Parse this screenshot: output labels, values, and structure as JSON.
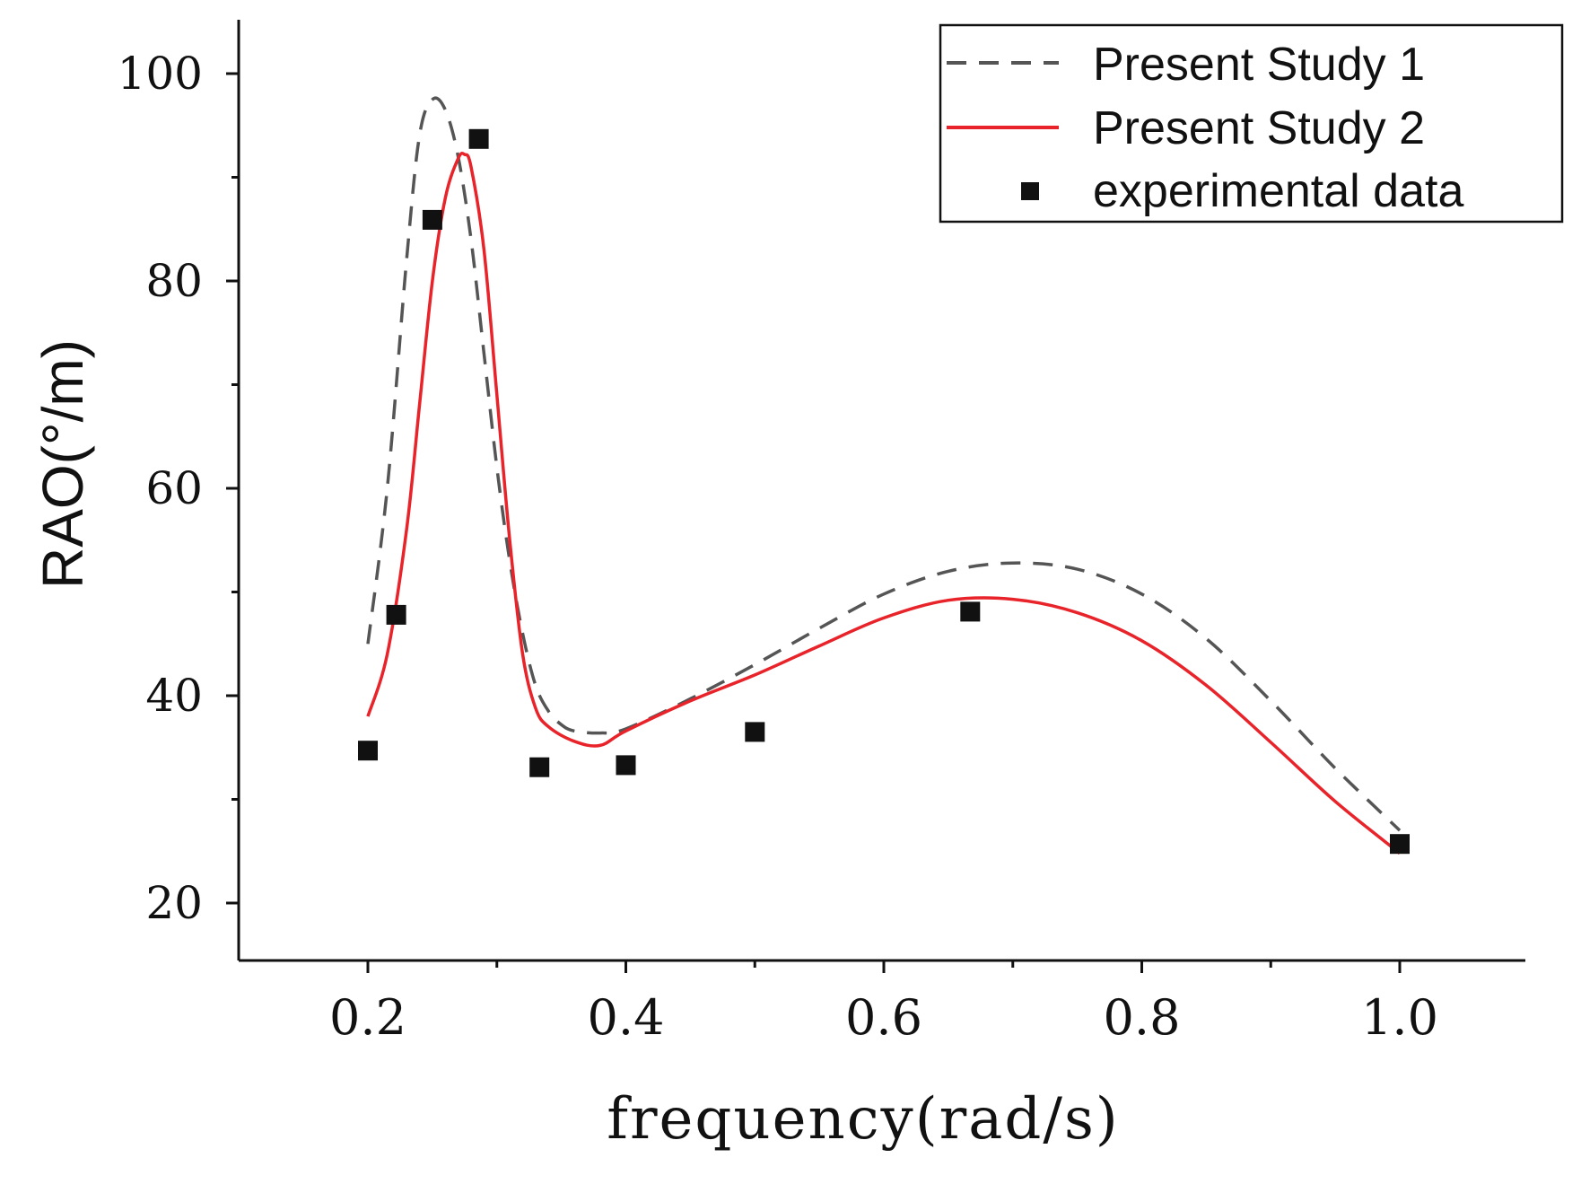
{
  "chart_data": {
    "type": "line",
    "title": "",
    "xlabel": "frequency(rad/s)",
    "ylabel": "RAO(°/m)",
    "xlim": [
      0.1,
      1.1
    ],
    "ylim": [
      15,
      105
    ],
    "xticks": [
      0.2,
      0.4,
      0.6,
      0.8,
      1.0
    ],
    "xtick_labels": [
      "0.2",
      "0.4",
      "0.6",
      "0.8",
      "1.0"
    ],
    "yticks": [
      20,
      40,
      60,
      80,
      100
    ],
    "ytick_labels": [
      "20",
      "40",
      "60",
      "80",
      "100"
    ],
    "y_minor_ticks": [
      30,
      50,
      70,
      90
    ],
    "x_minor_ticks": [
      0.3,
      0.5,
      0.7,
      0.9
    ],
    "grid": false,
    "legend_position": "top-right",
    "series": [
      {
        "name": "Present Study 1",
        "style": "dashed",
        "color": "#555555",
        "x": [
          0.2,
          0.215,
          0.23,
          0.24,
          0.25,
          0.26,
          0.27,
          0.28,
          0.29,
          0.3,
          0.31,
          0.32,
          0.33,
          0.34,
          0.35,
          0.36,
          0.38,
          0.4,
          0.45,
          0.5,
          0.55,
          0.6,
          0.65,
          0.7,
          0.75,
          0.8,
          0.85,
          0.9,
          0.95,
          1.0
        ],
        "y": [
          45,
          60,
          82,
          94,
          97.5,
          96.5,
          92,
          84,
          73,
          62,
          53,
          46,
          41,
          38.5,
          37.2,
          36.6,
          36.4,
          36.8,
          39.7,
          43,
          46.5,
          49.8,
          52,
          52.8,
          52.2,
          49.8,
          45.5,
          39.5,
          33,
          27
        ]
      },
      {
        "name": "Present Study 2",
        "style": "solid",
        "color": "#e8232a",
        "x": [
          0.2,
          0.215,
          0.23,
          0.24,
          0.25,
          0.26,
          0.27,
          0.275,
          0.28,
          0.29,
          0.3,
          0.31,
          0.32,
          0.33,
          0.34,
          0.36,
          0.38,
          0.4,
          0.45,
          0.5,
          0.55,
          0.6,
          0.65,
          0.7,
          0.75,
          0.8,
          0.85,
          0.9,
          0.95,
          1.0
        ],
        "y": [
          38,
          44,
          56,
          68,
          80,
          88,
          91.8,
          92.2,
          91,
          83,
          69,
          55,
          44,
          38.8,
          37,
          35.6,
          35.2,
          36.6,
          39.5,
          42,
          44.8,
          47.5,
          49.2,
          49.3,
          48,
          45.3,
          41,
          35.5,
          29.8,
          24.8
        ]
      }
    ],
    "scatter": {
      "name": "experimental data",
      "marker": "square",
      "color": "#111111",
      "x": [
        0.2,
        0.222,
        0.25,
        0.286,
        0.333,
        0.4,
        0.5,
        0.667,
        1.0
      ],
      "y": [
        34.7,
        47.8,
        85.9,
        93.7,
        33.1,
        33.3,
        36.5,
        48.1,
        25.7
      ]
    }
  }
}
